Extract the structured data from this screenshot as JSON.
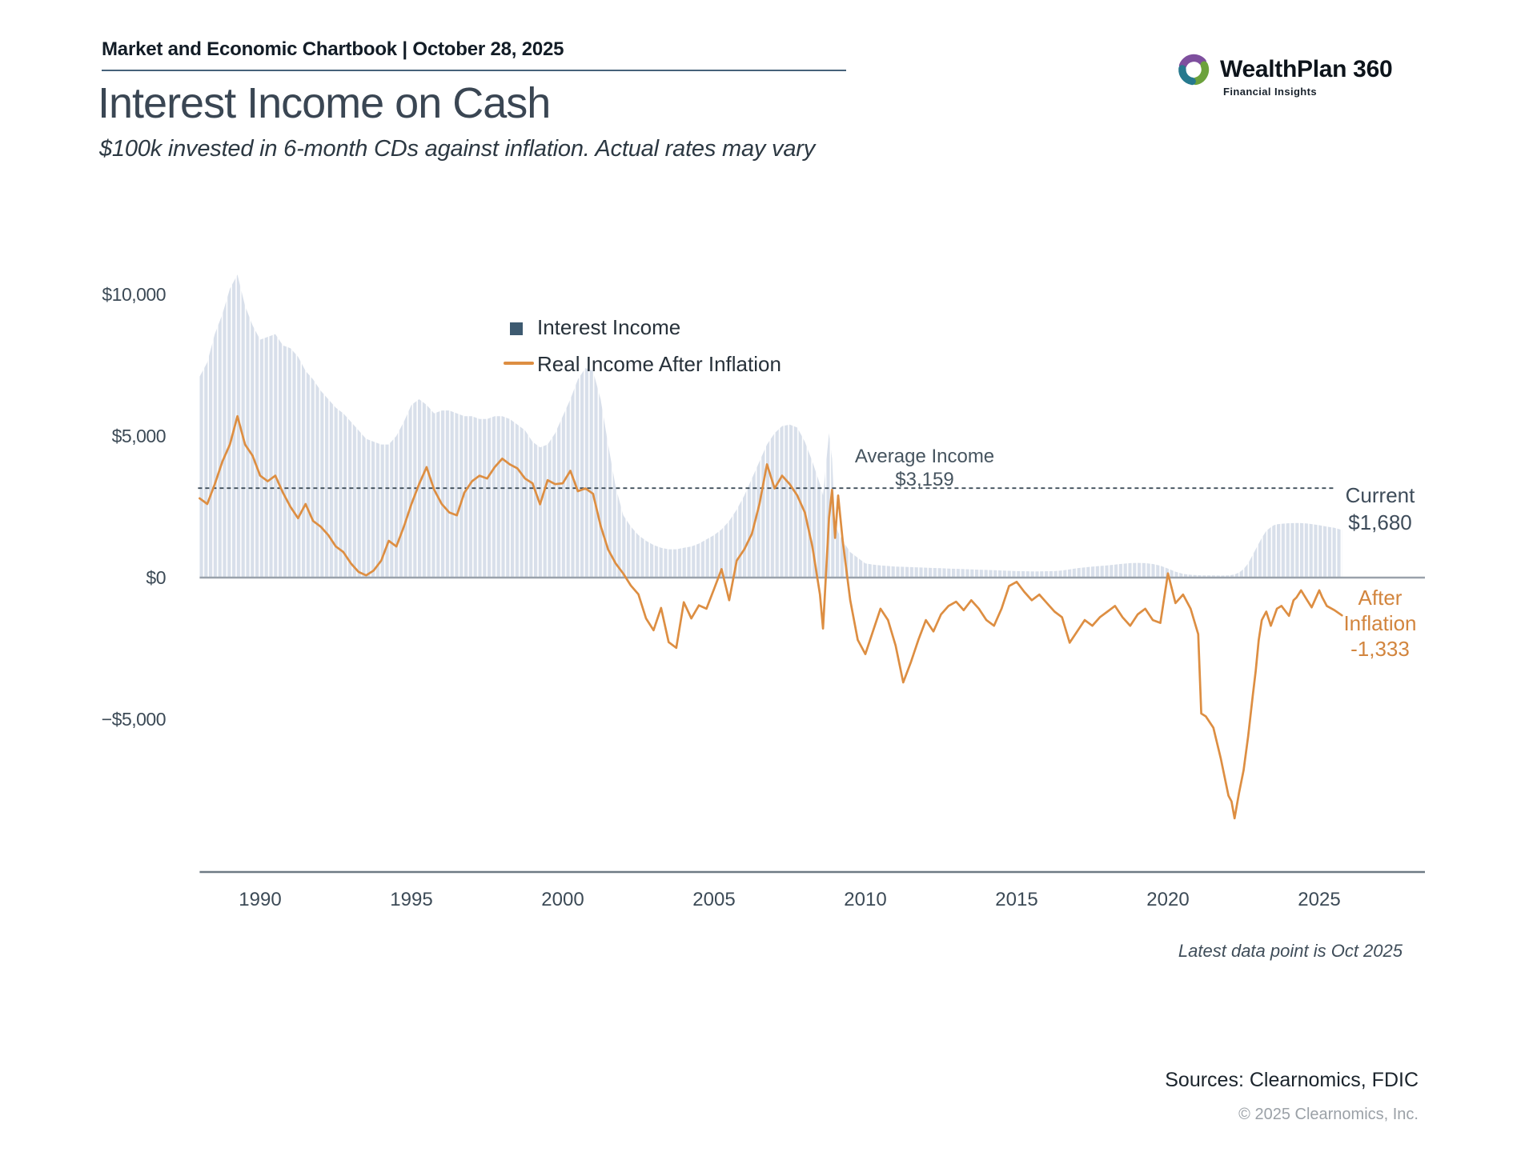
{
  "header": {
    "left_text": "Market and Economic Chartbook | October 28, 2025",
    "logo": {
      "name": "WealthPlan 360",
      "tagline": "Financial Insights"
    }
  },
  "footer": {
    "sources": "Sources: Clearnomics, FDIC",
    "copyright": "© 2025 Clearnomics, Inc."
  },
  "colors": {
    "area_fill": "#d8dfea",
    "line_orange": "#dd8e42",
    "legend_square": "#3d5a70",
    "avg_dash": "#3f4e5a",
    "zero_line": "#9aa2ab",
    "axis_line": "#6e7a84",
    "tick_text": "#3c4a56"
  },
  "chart_data": {
    "type": "area",
    "title": "Interest Income on Cash",
    "subtitle": "$100k invested in 6-month CDs against inflation. Actual rates may vary",
    "xlabel": "",
    "ylabel": "",
    "grid": false,
    "legend_position": "upper-center",
    "xlim": [
      1988,
      2028.5
    ],
    "ylim": [
      -10500,
      11300
    ],
    "x_ticks": [
      {
        "value": 1990,
        "label": "1990"
      },
      {
        "value": 1995,
        "label": "1995"
      },
      {
        "value": 2000,
        "label": "2000"
      },
      {
        "value": 2005,
        "label": "2005"
      },
      {
        "value": 2010,
        "label": "2010"
      },
      {
        "value": 2015,
        "label": "2015"
      },
      {
        "value": 2020,
        "label": "2020"
      },
      {
        "value": 2025,
        "label": "2025"
      }
    ],
    "y_ticks": [
      {
        "value": 10000,
        "label": "$10,000"
      },
      {
        "value": 5000,
        "label": "$5,000"
      },
      {
        "value": 0,
        "label": "$0"
      },
      {
        "value": -5000,
        "label": "−$5,000"
      }
    ],
    "series": [
      {
        "name": "Interest Income",
        "type": "area",
        "color": "#d8dfea"
      },
      {
        "name": "Real Income After Inflation",
        "type": "line",
        "color": "#dd8e42"
      }
    ],
    "columns": [
      "year",
      "interest_income",
      "real_income_after_inflation"
    ],
    "points": [
      [
        1988.0,
        7100,
        2800
      ],
      [
        1988.25,
        7600,
        2600
      ],
      [
        1988.5,
        8600,
        3300
      ],
      [
        1988.75,
        9300,
        4100
      ],
      [
        1989.0,
        10200,
        4700
      ],
      [
        1989.25,
        10700,
        5700
      ],
      [
        1989.5,
        9600,
        4700
      ],
      [
        1989.75,
        8900,
        4300
      ],
      [
        1990.0,
        8400,
        3600
      ],
      [
        1990.25,
        8500,
        3400
      ],
      [
        1990.5,
        8600,
        3600
      ],
      [
        1990.75,
        8200,
        3000
      ],
      [
        1991.0,
        8100,
        2500
      ],
      [
        1991.25,
        7800,
        2100
      ],
      [
        1991.5,
        7300,
        2600
      ],
      [
        1991.75,
        7000,
        2000
      ],
      [
        1992.0,
        6600,
        1800
      ],
      [
        1992.25,
        6300,
        1500
      ],
      [
        1992.5,
        6000,
        1100
      ],
      [
        1992.75,
        5800,
        900
      ],
      [
        1993.0,
        5500,
        500
      ],
      [
        1993.25,
        5200,
        200
      ],
      [
        1993.5,
        4900,
        80
      ],
      [
        1993.75,
        4800,
        250
      ],
      [
        1994.0,
        4700,
        600
      ],
      [
        1994.25,
        4700,
        1300
      ],
      [
        1994.5,
        5000,
        1100
      ],
      [
        1994.75,
        5500,
        1800
      ],
      [
        1995.0,
        6100,
        2600
      ],
      [
        1995.25,
        6300,
        3300
      ],
      [
        1995.5,
        6100,
        3900
      ],
      [
        1995.75,
        5800,
        3100
      ],
      [
        1996.0,
        5900,
        2600
      ],
      [
        1996.25,
        5900,
        2300
      ],
      [
        1996.5,
        5800,
        2200
      ],
      [
        1996.75,
        5700,
        3000
      ],
      [
        1997.0,
        5700,
        3400
      ],
      [
        1997.25,
        5600,
        3600
      ],
      [
        1997.5,
        5600,
        3500
      ],
      [
        1997.75,
        5700,
        3900
      ],
      [
        1998.0,
        5700,
        4200
      ],
      [
        1998.25,
        5600,
        4000
      ],
      [
        1998.5,
        5400,
        3860
      ],
      [
        1998.75,
        5200,
        3500
      ],
      [
        1999.0,
        4800,
        3330
      ],
      [
        1999.25,
        4600,
        2590
      ],
      [
        1999.5,
        4700,
        3440
      ],
      [
        1999.75,
        5100,
        3300
      ],
      [
        2000.0,
        5700,
        3330
      ],
      [
        2000.25,
        6300,
        3770
      ],
      [
        2000.5,
        7000,
        3050
      ],
      [
        2000.75,
        7400,
        3150
      ],
      [
        2001.0,
        7300,
        2960
      ],
      [
        2001.25,
        6300,
        1830
      ],
      [
        2001.5,
        4700,
        990
      ],
      [
        2001.75,
        3200,
        500
      ],
      [
        2002.0,
        2200,
        140
      ],
      [
        2002.25,
        1800,
        -280
      ],
      [
        2002.5,
        1500,
        -590
      ],
      [
        2002.75,
        1300,
        -1440
      ],
      [
        2003.0,
        1150,
        -1860
      ],
      [
        2003.25,
        1050,
        -1070
      ],
      [
        2003.5,
        1000,
        -2280
      ],
      [
        2003.75,
        1000,
        -2480
      ],
      [
        2004.0,
        1050,
        -870
      ],
      [
        2004.25,
        1100,
        -1440
      ],
      [
        2004.5,
        1200,
        -980
      ],
      [
        2004.75,
        1350,
        -1100
      ],
      [
        2005.0,
        1500,
        -400
      ],
      [
        2005.25,
        1700,
        300
      ],
      [
        2005.5,
        2000,
        -800
      ],
      [
        2005.75,
        2400,
        600
      ],
      [
        2006.0,
        2900,
        1000
      ],
      [
        2006.25,
        3500,
        1550
      ],
      [
        2006.5,
        4100,
        2600
      ],
      [
        2006.75,
        4700,
        4000
      ],
      [
        2007.0,
        5100,
        3150
      ],
      [
        2007.25,
        5350,
        3600
      ],
      [
        2007.5,
        5400,
        3300
      ],
      [
        2007.75,
        5300,
        2900
      ],
      [
        2008.0,
        4800,
        2300
      ],
      [
        2008.25,
        4100,
        1100
      ],
      [
        2008.5,
        3300,
        -600
      ],
      [
        2008.6,
        2900,
        -1800
      ],
      [
        2008.8,
        5100,
        2100
      ],
      [
        2008.9,
        4200,
        3100
      ],
      [
        2009.0,
        1900,
        1400
      ],
      [
        2009.1,
        1600,
        2900
      ],
      [
        2009.25,
        1300,
        1300
      ],
      [
        2009.5,
        900,
        -800
      ],
      [
        2009.75,
        700,
        -2200
      ],
      [
        2010.0,
        500,
        -2700
      ],
      [
        2010.25,
        460,
        -1900
      ],
      [
        2010.5,
        430,
        -1100
      ],
      [
        2010.75,
        410,
        -1500
      ],
      [
        2011.0,
        390,
        -2400
      ],
      [
        2011.25,
        380,
        -3700
      ],
      [
        2011.5,
        370,
        -3000
      ],
      [
        2011.75,
        360,
        -2200
      ],
      [
        2012.0,
        350,
        -1500
      ],
      [
        2012.25,
        340,
        -1900
      ],
      [
        2012.5,
        330,
        -1300
      ],
      [
        2012.75,
        320,
        -1000
      ],
      [
        2013.0,
        310,
        -850
      ],
      [
        2013.25,
        300,
        -1150
      ],
      [
        2013.5,
        290,
        -800
      ],
      [
        2013.75,
        280,
        -1100
      ],
      [
        2014.0,
        270,
        -1500
      ],
      [
        2014.25,
        260,
        -1700
      ],
      [
        2014.5,
        250,
        -1100
      ],
      [
        2014.75,
        240,
        -300
      ],
      [
        2015.0,
        230,
        -150
      ],
      [
        2015.25,
        225,
        -500
      ],
      [
        2015.5,
        220,
        -800
      ],
      [
        2015.75,
        220,
        -600
      ],
      [
        2016.0,
        225,
        -900
      ],
      [
        2016.25,
        230,
        -1200
      ],
      [
        2016.5,
        250,
        -1400
      ],
      [
        2016.75,
        290,
        -2300
      ],
      [
        2017.0,
        330,
        -1900
      ],
      [
        2017.25,
        360,
        -1500
      ],
      [
        2017.5,
        390,
        -1700
      ],
      [
        2017.75,
        410,
        -1400
      ],
      [
        2018.0,
        430,
        -1200
      ],
      [
        2018.25,
        460,
        -1000
      ],
      [
        2018.5,
        490,
        -1400
      ],
      [
        2018.75,
        510,
        -1700
      ],
      [
        2019.0,
        520,
        -1300
      ],
      [
        2019.25,
        510,
        -1100
      ],
      [
        2019.5,
        480,
        -1500
      ],
      [
        2019.75,
        420,
        -1600
      ],
      [
        2020.0,
        320,
        150
      ],
      [
        2020.25,
        210,
        -900
      ],
      [
        2020.5,
        130,
        -600
      ],
      [
        2020.75,
        100,
        -1100
      ],
      [
        2021.0,
        85,
        -2000
      ],
      [
        2021.1,
        80,
        -4800
      ],
      [
        2021.25,
        80,
        -4900
      ],
      [
        2021.5,
        75,
        -5300
      ],
      [
        2021.75,
        70,
        -6400
      ],
      [
        2022.0,
        80,
        -7700
      ],
      [
        2022.1,
        90,
        -7900
      ],
      [
        2022.2,
        110,
        -8500
      ],
      [
        2022.35,
        180,
        -7600
      ],
      [
        2022.5,
        300,
        -6800
      ],
      [
        2022.65,
        500,
        -5600
      ],
      [
        2022.8,
        800,
        -4200
      ],
      [
        2022.9,
        1000,
        -3300
      ],
      [
        2023.0,
        1200,
        -2200
      ],
      [
        2023.1,
        1400,
        -1500
      ],
      [
        2023.25,
        1650,
        -1200
      ],
      [
        2023.4,
        1780,
        -1700
      ],
      [
        2023.5,
        1850,
        -1400
      ],
      [
        2023.6,
        1880,
        -1100
      ],
      [
        2023.75,
        1900,
        -1000
      ],
      [
        2024.0,
        1920,
        -1350
      ],
      [
        2024.15,
        1925,
        -800
      ],
      [
        2024.25,
        1930,
        -700
      ],
      [
        2024.4,
        1925,
        -450
      ],
      [
        2024.6,
        1910,
        -800
      ],
      [
        2024.75,
        1890,
        -1050
      ],
      [
        2025.0,
        1850,
        -450
      ],
      [
        2025.1,
        1830,
        -700
      ],
      [
        2025.25,
        1800,
        -1000
      ],
      [
        2025.5,
        1760,
        -1150
      ],
      [
        2025.75,
        1680,
        -1333
      ]
    ],
    "annotations": {
      "average_income": {
        "label": "Average Income",
        "value": 3159,
        "value_label": "$3,159"
      },
      "current": {
        "label": "Current",
        "value": 1680,
        "value_label": "$1,680"
      },
      "after_inflation": {
        "label_line1": "After",
        "label_line2": "Inflation",
        "value": -1333,
        "value_label": "-1,333"
      },
      "note": "Latest data point is Oct 2025"
    }
  }
}
